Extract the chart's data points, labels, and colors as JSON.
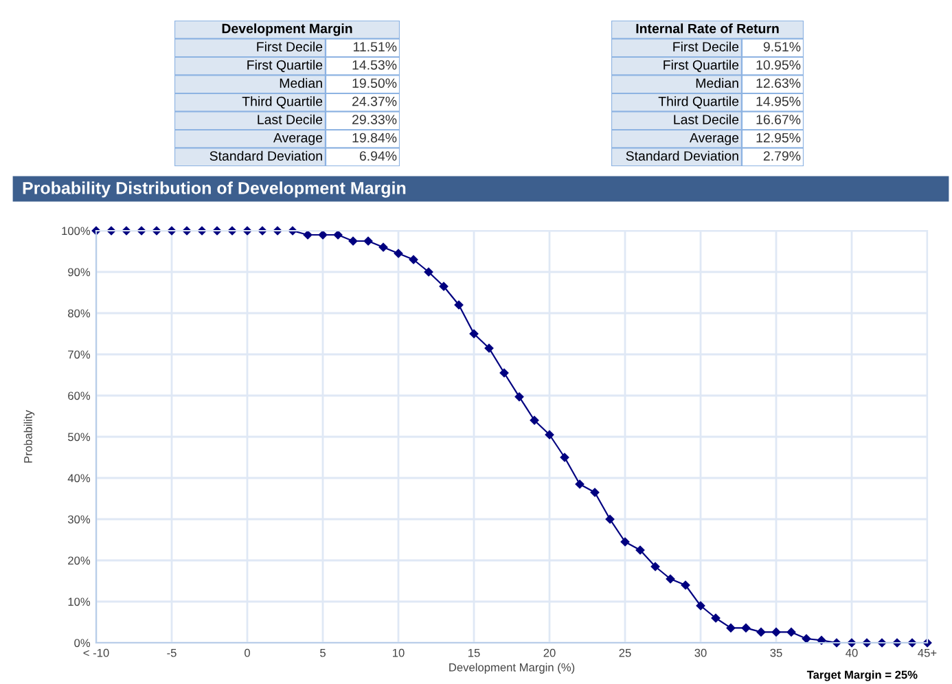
{
  "chart_data": {
    "type": "line",
    "title": "Probability Distribution of Development Margin",
    "xlabel": "Development Margin (%)",
    "ylabel": "Probability",
    "x": [
      -10,
      -9,
      -8,
      -7,
      -6,
      -5,
      -4,
      -3,
      -2,
      -1,
      0,
      1,
      2,
      3,
      4,
      5,
      6,
      7,
      8,
      9,
      10,
      11,
      12,
      13,
      14,
      15,
      16,
      17,
      18,
      19,
      20,
      21,
      22,
      23,
      24,
      25,
      26,
      27,
      28,
      29,
      30,
      31,
      32,
      33,
      34,
      35,
      36,
      37,
      38,
      39,
      40,
      41,
      42,
      43,
      44,
      45
    ],
    "series": [
      {
        "color": "#000080",
        "values": [
          100,
          100,
          100,
          100,
          100,
          100,
          100,
          100,
          100,
          100,
          100,
          100,
          100,
          100,
          99,
          99,
          99,
          97.5,
          97.5,
          96,
          94.5,
          93,
          90,
          86.5,
          82,
          75,
          71.5,
          65.5,
          59.7,
          54,
          50.5,
          45,
          38.5,
          36.5,
          30,
          24.5,
          22.5,
          18.5,
          15.5,
          14,
          9,
          6,
          3.6,
          3.6,
          2.6,
          2.6,
          2.6,
          1,
          0.6,
          0,
          0,
          0,
          0,
          0,
          0,
          0
        ]
      }
    ],
    "xlim": [
      -10,
      45
    ],
    "xticks": [
      {
        "value": -10,
        "label": "< -10"
      },
      -5,
      0,
      5,
      10,
      15,
      20,
      25,
      30,
      35,
      40,
      {
        "value": 45,
        "label": "45+"
      }
    ],
    "ylim": [
      0,
      100
    ],
    "yticks": [
      {
        "value": 0,
        "label": "0%"
      },
      {
        "value": 10,
        "label": "10%"
      },
      {
        "value": 20,
        "label": "20%"
      },
      {
        "value": 30,
        "label": "30%"
      },
      {
        "value": 40,
        "label": "40%"
      },
      {
        "value": 50,
        "label": "50%"
      },
      {
        "value": 60,
        "label": "60%"
      },
      {
        "value": 70,
        "label": "70%"
      },
      {
        "value": 80,
        "label": "80%"
      },
      {
        "value": 90,
        "label": "90%"
      },
      {
        "value": 100,
        "label": "100%"
      }
    ],
    "grid": true,
    "marker": "diamond",
    "line_style": "solid",
    "legend": false,
    "annotations": [
      "Development Margin",
      "First Decile",
      "11.51%",
      "First Quartile",
      "14.53%",
      "Median",
      "19.50%",
      "Third Quartile",
      "24.37%",
      "Last Decile",
      "29.33%",
      "Average",
      "19.84%",
      "Standard Deviation",
      "6.94%",
      "Internal Rate of Return",
      "First Decile",
      "9.51%",
      "First Quartile",
      "10.95%",
      "Median",
      "12.63%",
      "Third Quartile",
      "14.95%",
      "Last Decile",
      "16.67%",
      "Average",
      "12.95%",
      "Standard Deviation",
      "2.79%",
      "Target Margin = 25%"
    ]
  }
}
